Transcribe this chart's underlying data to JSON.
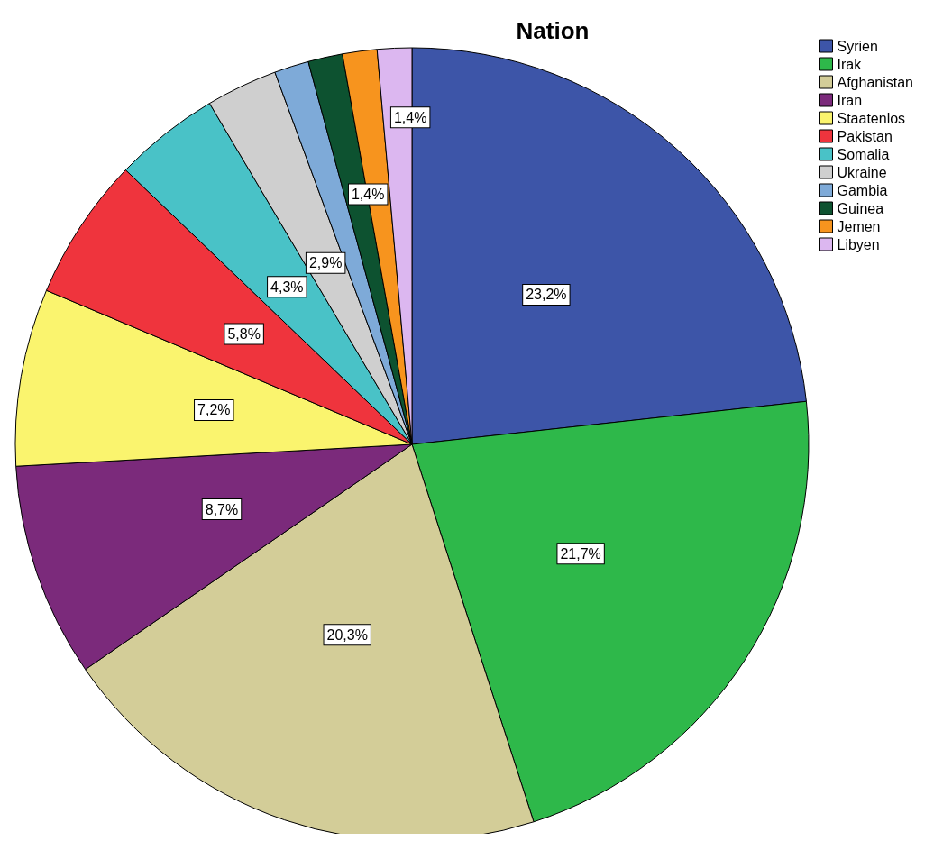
{
  "chart_data": {
    "type": "pie",
    "title": "Nation",
    "legend": "top right",
    "categories": [
      "Syrien",
      "Irak",
      "Afghanistan",
      "Iran",
      "Staatenlos",
      "Pakistan",
      "Somalia",
      "Ukraine",
      "Gambia",
      "Guinea",
      "Jemen",
      "Libyen"
    ],
    "values": [
      23.2,
      21.7,
      20.3,
      8.7,
      7.2,
      5.8,
      4.3,
      2.9,
      1.4,
      1.4,
      1.4,
      1.4
    ],
    "colors": [
      "#3d55a8",
      "#2eb84a",
      "#d3cd98",
      "#7b2a7b",
      "#faf46e",
      "#ef343d",
      "#49c2c7",
      "#cfcfcf",
      "#7eaad8",
      "#0d5230",
      "#f7941e",
      "#dcb7f0"
    ],
    "value_labels": [
      "23,2%",
      "21,7%",
      "20,3%",
      "8,7%",
      "7,2%",
      "5,8%",
      "4,3%",
      "2,9%",
      null,
      "1,4%",
      null,
      "1,4%"
    ]
  }
}
